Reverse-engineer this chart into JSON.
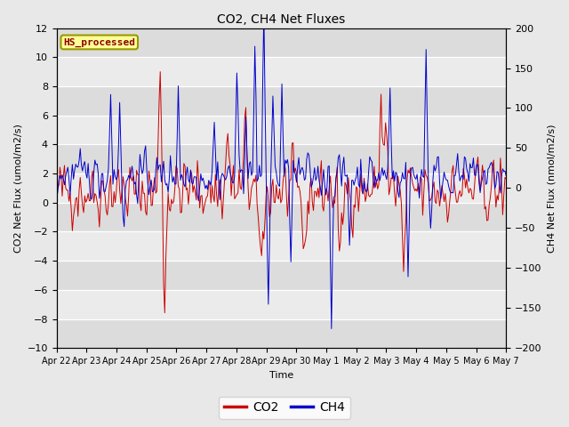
{
  "title": "CO2, CH4 Net Fluxes",
  "xlabel": "Time",
  "ylabel_left": "CO2 Net Flux (umol/m2/s)",
  "ylabel_right": "CH4 Net Flux (nmol/m2/s)",
  "ylim_left": [
    -10,
    12
  ],
  "ylim_right": [
    -200,
    200
  ],
  "yticks_left": [
    -10,
    -8,
    -6,
    -4,
    -2,
    0,
    2,
    4,
    6,
    8,
    10,
    12
  ],
  "yticks_right": [
    -200,
    -150,
    -100,
    -50,
    0,
    50,
    100,
    150,
    200
  ],
  "co2_color": "#cc0000",
  "ch4_color": "#0000cc",
  "bg_color": "#e8e8e8",
  "inner_bg_color": "#f5f5f5",
  "band_color_dark": "#dcdcdc",
  "band_color_light": "#ebebeb",
  "label_box_color": "#ffff99",
  "label_box_edge": "#999900",
  "label_text": "HS_processed",
  "label_text_color": "#8b0000",
  "legend_labels": [
    "CO2",
    "CH4"
  ],
  "n_points": 400,
  "seed": 42,
  "xticklabels": [
    "Apr 22",
    "Apr 23",
    "Apr 24",
    "Apr 25",
    "Apr 26",
    "Apr 27",
    "Apr 28",
    "Apr 29",
    "Apr 30",
    "May 1",
    "May 2",
    "May 3",
    "May 4",
    "May 5",
    "May 6",
    "May 7"
  ],
  "n_days": 15,
  "figsize": [
    6.4,
    4.8
  ],
  "dpi": 100
}
